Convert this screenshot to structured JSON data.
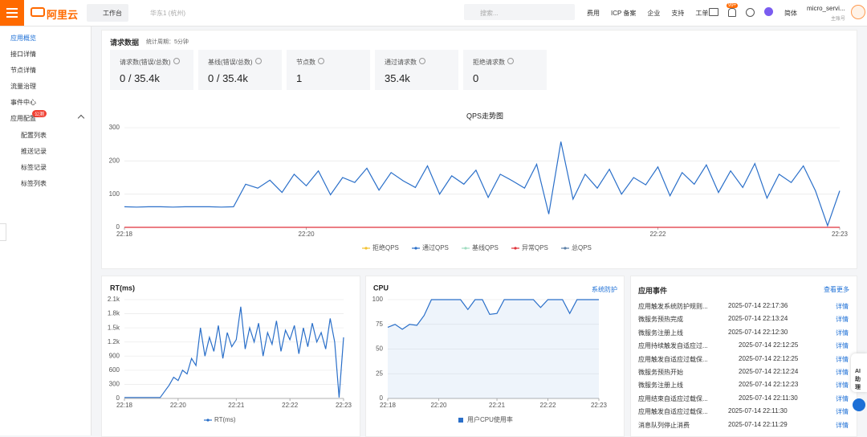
{
  "header": {
    "logo": "阿里云",
    "workbench": "工作台",
    "region": "华东1 (杭州)",
    "search": "搜索...",
    "links": [
      "费用",
      "ICP 备案",
      "企业",
      "支持",
      "工单"
    ],
    "badge": "99+",
    "lang": "简体",
    "user": "micro_servi...",
    "role": "主账号"
  },
  "sidebar": {
    "items": [
      "应用概览",
      "接口详情",
      "节点详情",
      "流量治理",
      "事件中心",
      "应用配置"
    ],
    "badge": "公测",
    "subitems": [
      "配置列表",
      "推送记录",
      "标签记录",
      "标签列表"
    ]
  },
  "request": {
    "title": "请求数据",
    "period": "统计周期：5分钟",
    "cards": [
      {
        "label": "请求数(错误/总数)",
        "value": "0 / 35.4k"
      },
      {
        "label": "基线(错误/总数)",
        "value": "0 / 35.4k"
      },
      {
        "label": "节点数",
        "value": "1"
      },
      {
        "label": "通过请求数",
        "value": "35.4k"
      },
      {
        "label": "拒绝请求数",
        "value": "0"
      }
    ]
  },
  "chart_data": [
    {
      "type": "line",
      "title": "QPS走势图",
      "categories": [
        "22:18",
        null,
        null,
        null,
        null,
        null,
        null,
        null,
        null,
        null,
        null,
        null,
        null,
        null,
        null,
        "22:20",
        null,
        null,
        null,
        null,
        null,
        null,
        null,
        null,
        null,
        null,
        null,
        null,
        null,
        null,
        null,
        null,
        null,
        null,
        null,
        null,
        null,
        null,
        null,
        null,
        null,
        null,
        null,
        null,
        "22:22",
        null,
        null,
        null,
        null,
        null,
        null,
        null,
        null,
        null,
        null,
        null,
        null,
        null,
        null,
        "22:23"
      ],
      "series": [
        {
          "name": "拒绝QPS",
          "color": "#f2c230"
        },
        {
          "name": "通过QPS",
          "color": "#2a6fc9",
          "values": [
            62,
            61,
            62,
            62,
            61,
            62,
            62,
            62,
            61,
            62,
            130,
            118,
            142,
            105,
            160,
            125,
            170,
            98,
            150,
            135,
            178,
            112,
            165,
            140,
            120,
            185,
            100,
            155,
            130,
            172,
            90,
            160,
            140,
            118,
            190,
            40,
            258,
            85,
            160,
            118,
            175,
            100,
            150,
            128,
            182,
            95,
            165,
            130,
            188,
            105,
            170,
            120,
            192,
            88,
            160,
            135,
            185,
            110,
            5,
            110
          ]
        },
        {
          "name": "基线QPS",
          "color": "#9fdcc0"
        },
        {
          "name": "异常QPS",
          "color": "#e0323a",
          "values": [
            0,
            0,
            0,
            0,
            0,
            0,
            0,
            0,
            0,
            0,
            0,
            0,
            0,
            0,
            0,
            0,
            0,
            0,
            0,
            0,
            0,
            0,
            0,
            0,
            0,
            0,
            0,
            0,
            0,
            0,
            0,
            0,
            0,
            0,
            0,
            0,
            0,
            0,
            0,
            0,
            0,
            0,
            0,
            0,
            0,
            0,
            0,
            0,
            0,
            0,
            0,
            0,
            0,
            0,
            0,
            0,
            0,
            0,
            0,
            0
          ]
        },
        {
          "name": "总QPS",
          "color": "#5b7fa6"
        }
      ],
      "ylim": [
        0,
        300
      ],
      "yticks": [
        0,
        100,
        200,
        300
      ],
      "grid": true
    },
    {
      "type": "line",
      "title": "RT(ms)",
      "categories": [
        "22:18",
        null,
        null,
        null,
        null,
        null,
        null,
        null,
        null,
        null,
        null,
        null,
        "22:20",
        null,
        null,
        null,
        null,
        null,
        null,
        null,
        null,
        null,
        null,
        null,
        null,
        "22:21",
        null,
        null,
        null,
        null,
        null,
        null,
        null,
        null,
        null,
        null,
        null,
        "22:22",
        null,
        null,
        null,
        null,
        null,
        null,
        null,
        null,
        null,
        null,
        null,
        "22:23"
      ],
      "series": [
        {
          "name": "RT(ms)",
          "color": "#2a6fc9",
          "values": [
            20,
            20,
            20,
            20,
            20,
            20,
            20,
            20,
            20,
            150,
            280,
            450,
            380,
            600,
            520,
            850,
            700,
            1500,
            900,
            1300,
            1000,
            1550,
            850,
            1400,
            1100,
            1250,
            1950,
            1050,
            1500,
            1200,
            1600,
            900,
            1400,
            1150,
            1650,
            1000,
            1450,
            1250,
            1550,
            950,
            1500,
            1100,
            1600,
            1200,
            1400,
            1050,
            1700,
            1200,
            20,
            1300
          ]
        }
      ],
      "ylim": [
        0,
        2100
      ],
      "yticks": [
        0,
        300,
        600,
        900,
        {
          "value": 1200,
          "label": "1.2k"
        },
        {
          "value": 1500,
          "label": "1.5k"
        },
        {
          "value": 1800,
          "label": "1.8k"
        },
        {
          "value": 2100,
          "label": "2.1k"
        }
      ],
      "grid": true
    },
    {
      "type": "area",
      "title": "CPU",
      "categories": [
        "22:18",
        null,
        null,
        null,
        null,
        null,
        null,
        "22:20",
        null,
        null,
        null,
        null,
        null,
        null,
        null,
        "22:21",
        null,
        null,
        null,
        null,
        null,
        null,
        "22:22",
        null,
        null,
        null,
        null,
        null,
        null,
        "22:23"
      ],
      "series": [
        {
          "name": "用户CPU使用率",
          "color": "#2a6fc9",
          "values": [
            72,
            75,
            70,
            75,
            74,
            84,
            100,
            100,
            100,
            100,
            100,
            90,
            100,
            100,
            85,
            86,
            100,
            100,
            100,
            100,
            100,
            92,
            100,
            100,
            100,
            86,
            100,
            100,
            100,
            100
          ]
        }
      ],
      "ylim": [
        0,
        100
      ],
      "yticks": [
        0,
        25,
        50,
        75,
        100
      ],
      "grid": true
    }
  ],
  "cpu_panel": {
    "link": "系统防护"
  },
  "events": {
    "title": "应用事件",
    "more": "查看更多",
    "rows": [
      {
        "name": "应用触发系统防护规则...",
        "time": "2025-07-14 22:17:36",
        "action": "详情"
      },
      {
        "name": "微服务预热完成",
        "time": "2025-07-14 22:13:24",
        "action": "详情"
      },
      {
        "name": "微服务注册上线",
        "time": "2025-07-14 22:12:30",
        "action": "详情"
      },
      {
        "name": "应用持续触发自适应过...",
        "time": "2025-07-14 22:12:25",
        "action": "详情"
      },
      {
        "name": "应用触发自适应过载保...",
        "time": "2025-07-14 22:12:25",
        "action": "详情"
      },
      {
        "name": "微服务预热开始",
        "time": "2025-07-14 22:12:24",
        "action": "详情"
      },
      {
        "name": "微服务注册上线",
        "time": "2025-07-14 22:12:23",
        "action": "详情"
      },
      {
        "name": "应用结束自适应过载保...",
        "time": "2025-07-14 22:11:30",
        "action": "详情"
      },
      {
        "name": "应用触发自适应过载保...",
        "time": "2025-07-14 22:11:30",
        "action": "详情"
      },
      {
        "name": "消息队列停止消费",
        "time": "2025-07-14 22:11:29",
        "action": "详情"
      }
    ]
  },
  "assistant": "AI助理"
}
